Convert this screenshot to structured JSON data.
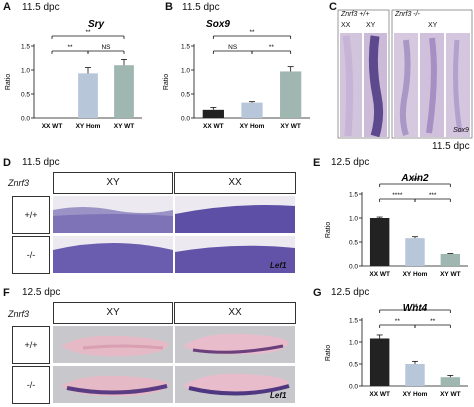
{
  "panels": {
    "A": {
      "letter": "A",
      "stage": "11.5 dpc"
    },
    "B": {
      "letter": "B",
      "stage": "11.5 dpc"
    },
    "C": {
      "letter": "C",
      "stage": "11.5 dpc",
      "gene": "Sox9",
      "group_wt": "Znrf3 +/+",
      "group_ko": "Znrf3 -/-",
      "cols_wt": [
        "XX",
        "XY"
      ],
      "col_ko": "XY"
    },
    "D": {
      "letter": "D",
      "stage": "11.5 dpc",
      "gene_row": "Znrf3",
      "cols": [
        "XY",
        "XX"
      ],
      "rows": [
        "+/+",
        "-/-"
      ],
      "probe": "Lef1"
    },
    "E": {
      "letter": "E",
      "stage": "12.5 dpc"
    },
    "F": {
      "letter": "F",
      "stage": "12.5 dpc",
      "gene_row": "Znrf3",
      "cols": [
        "XY",
        "XX"
      ],
      "rows": [
        "+/+",
        "-/-"
      ],
      "probe": "Lef1"
    },
    "G": {
      "letter": "G",
      "stage": "12.5 dpc"
    }
  },
  "chart_data": [
    {
      "panel": "A",
      "type": "bar",
      "title": "Sry",
      "ylabel": "Ratio",
      "categories": [
        "XX WT",
        "XY Hom",
        "XY WT"
      ],
      "values": [
        0,
        0.93,
        1.1
      ],
      "errors": [
        0,
        0.12,
        0.12
      ],
      "colors": [
        "#222222",
        "#b7c6d8",
        "#9fb7b0"
      ],
      "ylim": [
        0,
        1.5
      ],
      "yticks": [
        "0.0",
        "0.5",
        "1.0",
        "1.5"
      ],
      "significance": [
        {
          "from": 0,
          "to": 2,
          "label": "**"
        },
        {
          "from": 0,
          "to": 1,
          "label": "**"
        },
        {
          "from": 1,
          "to": 2,
          "label": "NS"
        }
      ]
    },
    {
      "panel": "B",
      "type": "bar",
      "title": "Sox9",
      "ylabel": "Ratio",
      "categories": [
        "XX WT",
        "XY Hom",
        "XY WT"
      ],
      "values": [
        0.17,
        0.32,
        0.97
      ],
      "errors": [
        0.05,
        0.02,
        0.1
      ],
      "colors": [
        "#222222",
        "#b7c6d8",
        "#9fb7b0"
      ],
      "ylim": [
        0,
        1.5
      ],
      "yticks": [
        "0.0",
        "0.5",
        "1.0",
        "1.5"
      ],
      "significance": [
        {
          "from": 0,
          "to": 2,
          "label": "**"
        },
        {
          "from": 0,
          "to": 1,
          "label": "NS"
        },
        {
          "from": 1,
          "to": 2,
          "label": "**"
        }
      ]
    },
    {
      "panel": "E",
      "type": "bar",
      "title": "Axin2",
      "ylabel": "Ratio",
      "categories": [
        "XX WT",
        "XY Hom",
        "XY WT"
      ],
      "values": [
        1.0,
        0.58,
        0.25
      ],
      "errors": [
        0.02,
        0.03,
        0.01
      ],
      "colors": [
        "#222222",
        "#b7c6d8",
        "#9fb7b0"
      ],
      "ylim": [
        0,
        1.5
      ],
      "yticks": [
        "0.0",
        "0.5",
        "1.0",
        "1.5"
      ],
      "significance": [
        {
          "from": 0,
          "to": 2,
          "label": "****"
        },
        {
          "from": 0,
          "to": 1,
          "label": "****"
        },
        {
          "from": 1,
          "to": 2,
          "label": "***"
        }
      ]
    },
    {
      "panel": "G",
      "type": "bar",
      "title": "Wnt4",
      "ylabel": "Ratio",
      "categories": [
        "XX WT",
        "XY Hom",
        "XY WT"
      ],
      "values": [
        1.08,
        0.5,
        0.2
      ],
      "errors": [
        0.08,
        0.06,
        0.04
      ],
      "colors": [
        "#222222",
        "#b7c6d8",
        "#9fb7b0"
      ],
      "ylim": [
        0,
        1.5
      ],
      "yticks": [
        "0.0",
        "0.5",
        "1.0",
        "1.5"
      ],
      "significance": [
        {
          "from": 0,
          "to": 2,
          "label": "**"
        },
        {
          "from": 0,
          "to": 1,
          "label": "**"
        },
        {
          "from": 1,
          "to": 2,
          "label": "**"
        }
      ]
    }
  ]
}
